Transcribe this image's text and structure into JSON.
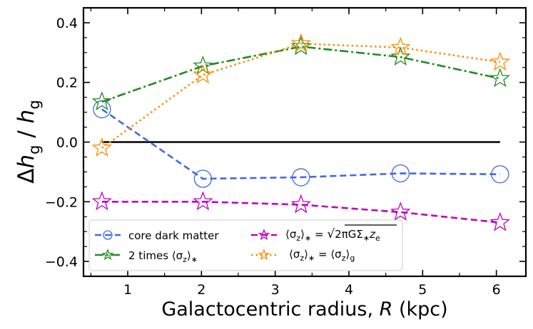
{
  "chart_data": {
    "type": "line",
    "title": "",
    "xlabel": "Galactocentric radius, R (kpc)",
    "ylabel": "Δhg / hg",
    "xlim": [
      0.4,
      6.4
    ],
    "ylim": [
      -0.45,
      0.45
    ],
    "xticks": [
      1,
      2,
      3,
      4,
      5,
      6
    ],
    "yticks": [
      -0.4,
      -0.2,
      0.0,
      0.2,
      0.4
    ],
    "xtick_labels": [
      "1",
      "2",
      "3",
      "4",
      "5",
      "6"
    ],
    "ytick_labels": [
      "−0.4",
      "−0.2",
      "0.0",
      "0.2",
      "0.4"
    ],
    "grid": false,
    "legend_placement": "lower-left",
    "reference_line": {
      "y": 0.0,
      "x_range": [
        0.65,
        6.05
      ],
      "color": "#000000"
    },
    "series": [
      {
        "name": "core dark matter",
        "color": "#4169e1",
        "linestyle": "dashed",
        "marker": "circle",
        "x": [
          0.65,
          2.02,
          3.35,
          4.7,
          6.05
        ],
        "y": [
          0.11,
          -0.123,
          -0.118,
          -0.105,
          -0.108
        ]
      },
      {
        "name": "2 times ⟨σz⟩*",
        "color": "#228b22",
        "linestyle": "dashdot",
        "marker": "star",
        "x": [
          0.65,
          2.02,
          3.35,
          4.7,
          6.05
        ],
        "y": [
          0.135,
          0.255,
          0.32,
          0.285,
          0.213
        ]
      },
      {
        "name": "⟨σz⟩* = √(2πGΣ*ze)",
        "color": "#c000c0",
        "linestyle": "dashed",
        "marker": "star",
        "x": [
          0.65,
          2.02,
          3.35,
          4.7,
          6.05
        ],
        "y": [
          -0.2,
          -0.2,
          -0.21,
          -0.235,
          -0.27
        ]
      },
      {
        "name": "⟨σz⟩* = ⟨σz⟩g",
        "color": "#ff8c00",
        "linestyle": "dotted",
        "marker": "star",
        "x": [
          0.65,
          2.02,
          3.35,
          4.7,
          6.05
        ],
        "y": [
          -0.02,
          0.225,
          0.33,
          0.317,
          0.268
        ]
      }
    ]
  }
}
